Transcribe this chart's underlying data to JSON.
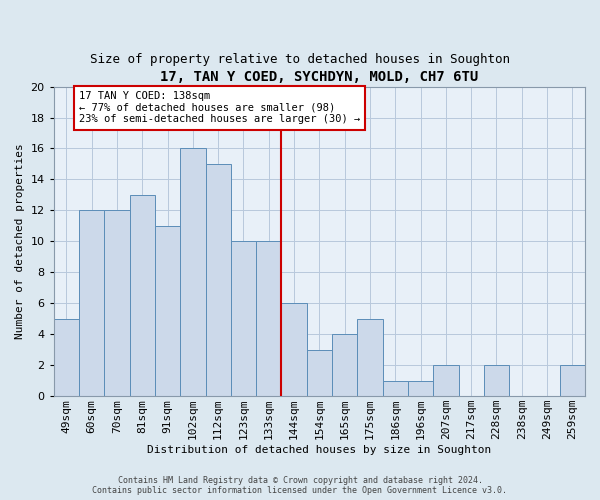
{
  "title": "17, TAN Y COED, SYCHDYN, MOLD, CH7 6TU",
  "subtitle": "Size of property relative to detached houses in Soughton",
  "xlabel": "Distribution of detached houses by size in Soughton",
  "ylabel": "Number of detached properties",
  "footer_line1": "Contains HM Land Registry data © Crown copyright and database right 2024.",
  "footer_line2": "Contains public sector information licensed under the Open Government Licence v3.0.",
  "categories": [
    "49sqm",
    "60sqm",
    "70sqm",
    "81sqm",
    "91sqm",
    "102sqm",
    "112sqm",
    "123sqm",
    "133sqm",
    "144sqm",
    "154sqm",
    "165sqm",
    "175sqm",
    "186sqm",
    "196sqm",
    "207sqm",
    "217sqm",
    "228sqm",
    "238sqm",
    "249sqm",
    "259sqm"
  ],
  "values": [
    5,
    12,
    12,
    13,
    11,
    16,
    15,
    10,
    10,
    6,
    3,
    4,
    5,
    1,
    1,
    2,
    0,
    2,
    0,
    0,
    2
  ],
  "bar_color": "#ccd9ea",
  "bar_edge_color": "#5b8db8",
  "red_line_color": "#cc0000",
  "red_line_x": 8.5,
  "annotation_text": "17 TAN Y COED: 138sqm\n← 77% of detached houses are smaller (98)\n23% of semi-detached houses are larger (30) →",
  "annotation_box_color": "#cc0000",
  "ylim": [
    0,
    20
  ],
  "yticks": [
    0,
    2,
    4,
    6,
    8,
    10,
    12,
    14,
    16,
    18,
    20
  ],
  "grid_color": "#b8c8dc",
  "background_color": "#dce8f0",
  "plot_background": "#e8f0f8",
  "title_fontsize": 10,
  "subtitle_fontsize": 9,
  "ylabel_fontsize": 8,
  "xlabel_fontsize": 8,
  "tick_fontsize": 8,
  "annotation_fontsize": 7.5,
  "footer_fontsize": 6
}
